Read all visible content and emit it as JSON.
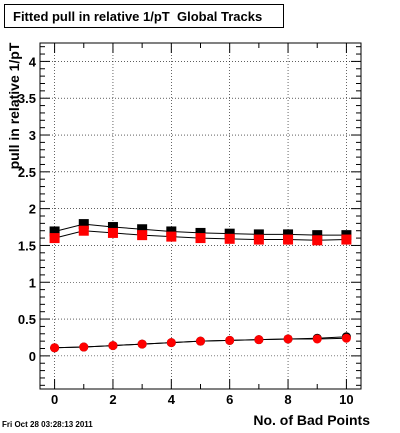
{
  "title": "Fitted pull in relative 1/pT  Global Tracks",
  "footer": "Fri Oct 28 03:28:13 2011",
  "chart_data": {
    "type": "scatter",
    "xlabel": "No. of Bad Points",
    "ylabel": "pull in relative 1/pT",
    "xlim": [
      -0.5,
      10.5
    ],
    "ylim": [
      -0.45,
      4.25
    ],
    "x_ticks": [
      0,
      2,
      4,
      6,
      8,
      10
    ],
    "y_ticks": [
      0,
      0.5,
      1,
      1.5,
      2,
      2.5,
      3,
      3.5,
      4
    ],
    "grid": true,
    "series": [
      {
        "marker": "square",
        "color": "#000000",
        "x": [
          0,
          1,
          2,
          3,
          4,
          5,
          6,
          7,
          8,
          9,
          10
        ],
        "y": [
          1.69,
          1.79,
          1.75,
          1.72,
          1.69,
          1.67,
          1.66,
          1.65,
          1.65,
          1.64,
          1.64
        ]
      },
      {
        "marker": "square",
        "color": "#ff0000",
        "x": [
          0,
          1,
          2,
          3,
          4,
          5,
          6,
          7,
          8,
          9,
          10
        ],
        "y": [
          1.6,
          1.7,
          1.67,
          1.64,
          1.62,
          1.6,
          1.59,
          1.58,
          1.58,
          1.57,
          1.58
        ]
      },
      {
        "marker": "circle",
        "color": "#000000",
        "x": [
          0,
          1,
          2,
          3,
          4,
          5,
          6,
          7,
          8,
          9,
          10
        ],
        "y": [
          0.11,
          0.12,
          0.14,
          0.16,
          0.18,
          0.2,
          0.21,
          0.22,
          0.23,
          0.24,
          0.26
        ]
      },
      {
        "marker": "circle",
        "color": "#ff0000",
        "x": [
          0,
          1,
          2,
          3,
          4,
          5,
          6,
          7,
          8,
          9,
          10
        ],
        "y": [
          0.11,
          0.12,
          0.14,
          0.16,
          0.18,
          0.2,
          0.21,
          0.22,
          0.23,
          0.23,
          0.24
        ]
      }
    ]
  }
}
